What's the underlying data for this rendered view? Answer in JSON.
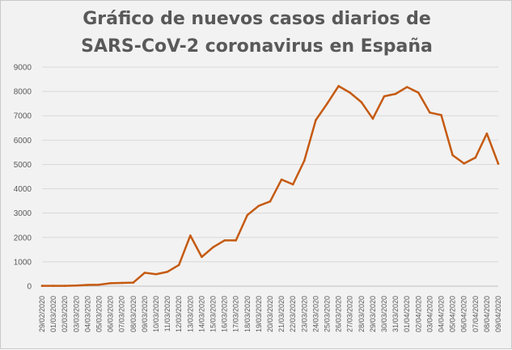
{
  "chart_data": {
    "type": "line",
    "title_lines": [
      "Gráfico de nuevos casos diarios de",
      "SARS-CoV-2 coronavirus en España"
    ],
    "xlabel": "",
    "ylabel": "",
    "ylim": [
      0,
      9000
    ],
    "yticks": [
      0,
      1000,
      2000,
      3000,
      4000,
      5000,
      6000,
      7000,
      8000,
      9000
    ],
    "ytick_labels": [
      "0",
      "1000",
      "2000",
      "3000",
      "4000",
      "5000",
      "6000",
      "7000",
      "8000",
      "9000"
    ],
    "grid": true,
    "legend": "none",
    "categories": [
      "29/02/2020",
      "01/03/2020",
      "02/03/2020",
      "03/03/2020",
      "04/03/2020",
      "05/03/2020",
      "06/03/2020",
      "07/03/2020",
      "08/03/2020",
      "09/03/2020",
      "10/03/2020",
      "11/03/2020",
      "12/03/2020",
      "13/03/2020",
      "14/03/2020",
      "15/03/2020",
      "16/03/2020",
      "17/03/2020",
      "18/03/2020",
      "19/03/2020",
      "20/03/2020",
      "21/03/2020",
      "22/03/2020",
      "23/03/2020",
      "24/03/2020",
      "25/03/2020",
      "26/03/2020",
      "27/03/2020",
      "28/03/2020",
      "29/03/2020",
      "30/03/2020",
      "31/03/2020",
      "01/04/2020",
      "02/04/2020",
      "03/04/2020",
      "04/04/2020",
      "05/04/2020",
      "06/04/2020",
      "07/04/2020",
      "08/04/2020",
      "09/04/2020"
    ],
    "series": [
      {
        "color": "#c55a11",
        "values": [
          13,
          13,
          13,
          23,
          48,
          60,
          121,
          131,
          146,
          550,
          490,
          590,
          870,
          2080,
          1200,
          1600,
          1880,
          1880,
          2920,
          3300,
          3480,
          4380,
          4180,
          5160,
          6820,
          7500,
          8220,
          7950,
          7560,
          6880,
          7800,
          7900,
          8180,
          7950,
          7130,
          7030,
          5380,
          5040,
          5280,
          6270,
          5030
        ]
      }
    ]
  }
}
